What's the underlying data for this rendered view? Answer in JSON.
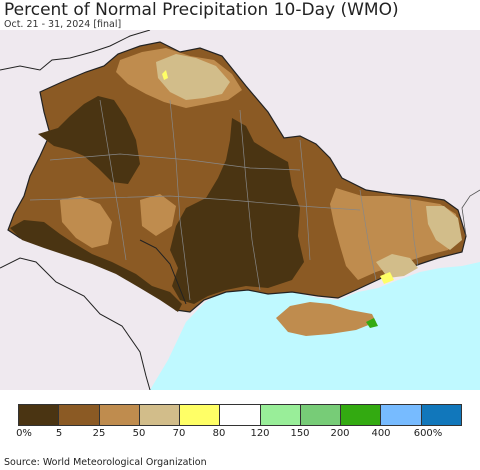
{
  "header": {
    "title": "Percent of Normal Precipitation 10-Day (WMO)",
    "subtitle": "Oct. 21 - 31, 2024 [final]"
  },
  "legend": {
    "colors": [
      "#4a3412",
      "#8b5a24",
      "#bf8c4e",
      "#d2bd8a",
      "#ffff66",
      "#ffffff",
      "#99ee99",
      "#77cc77",
      "#33aa11",
      "#77bbff",
      "#1177bb"
    ],
    "tick_labels": [
      "0%",
      "5",
      "25",
      "50",
      "70",
      "80",
      "120",
      "150",
      "200",
      "400",
      "600%"
    ]
  },
  "map": {
    "background_color": "#efe9ef",
    "sea_color": "#bff9ff",
    "border_color": "#222222"
  },
  "footer": {
    "source": "Source: World Meteorological Organization"
  }
}
